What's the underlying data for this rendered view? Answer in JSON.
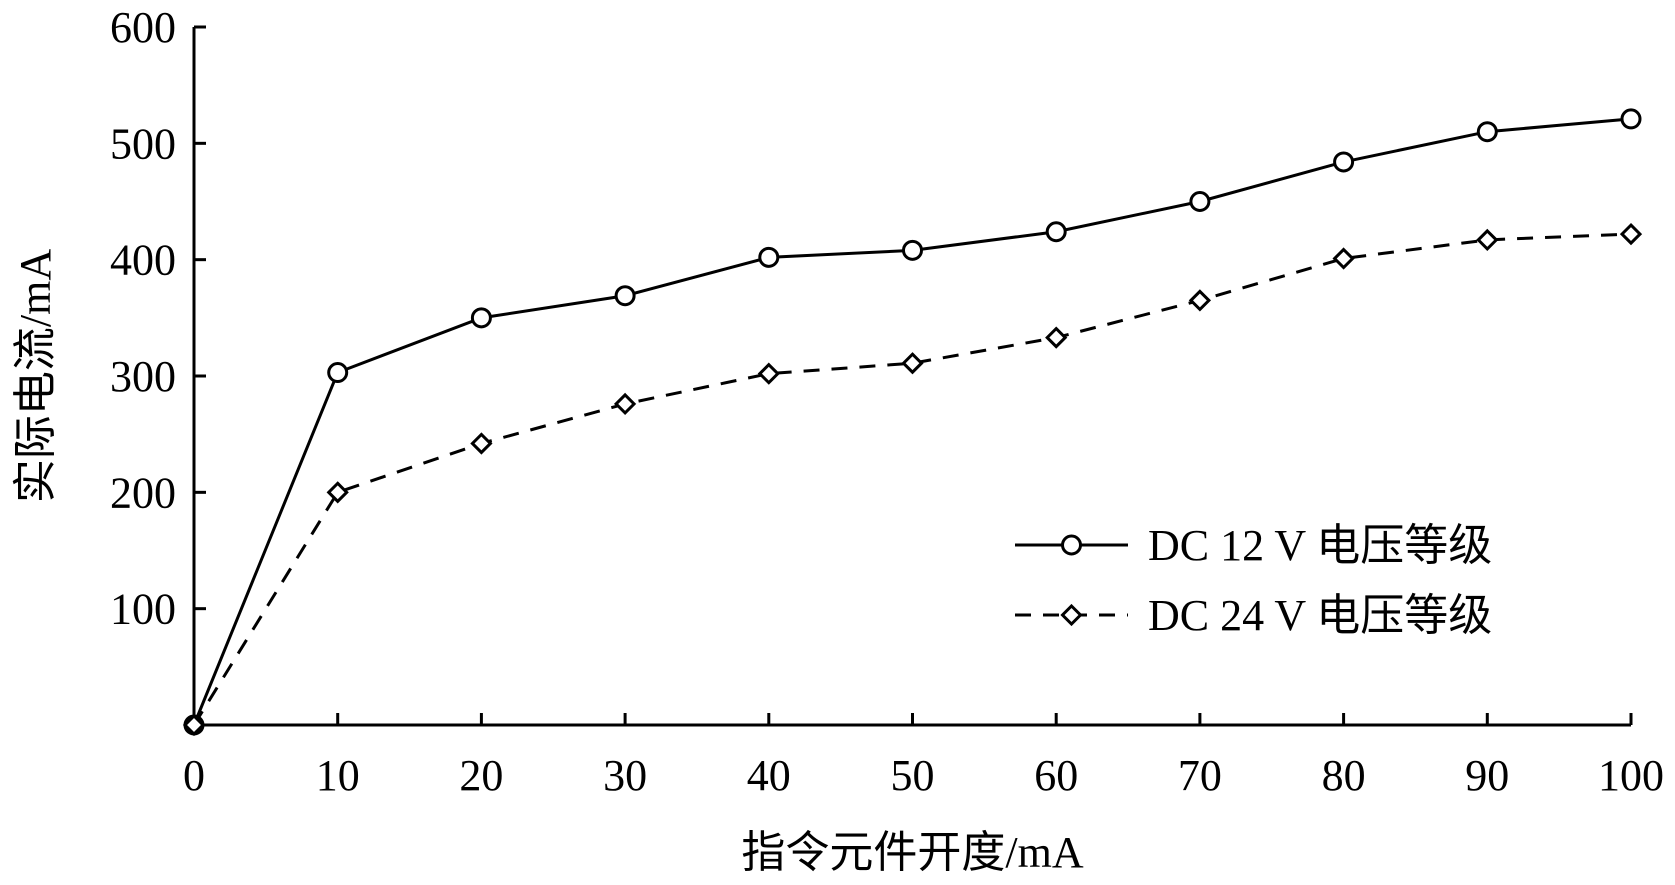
{
  "chart_data": {
    "type": "line",
    "title": "",
    "xlabel": "指令元件开度/mA",
    "ylabel": "实际电流/mA",
    "x": [
      0,
      10,
      20,
      30,
      40,
      50,
      60,
      70,
      80,
      90,
      100
    ],
    "xlim": [
      0,
      100
    ],
    "ylim": [
      0,
      600
    ],
    "xticks": [
      "0",
      "10",
      "20",
      "30",
      "40",
      "50",
      "60",
      "70",
      "80",
      "90",
      "100"
    ],
    "yticks": [
      "100",
      "200",
      "300",
      "400",
      "500",
      "600"
    ],
    "grid": false,
    "legend_position": "lower-right",
    "series": [
      {
        "name": "DC 12 V 电压等级",
        "values": [
          0,
          303,
          350,
          369,
          402,
          408,
          424,
          450,
          484,
          510,
          521
        ],
        "marker": "circle",
        "line_style": "solid",
        "color": "#000000"
      },
      {
        "name": "DC 24 V 电压等级",
        "values": [
          0,
          200,
          242,
          276,
          302,
          311,
          333,
          365,
          401,
          417,
          422
        ],
        "marker": "diamond",
        "line_style": "dashed",
        "color": "#000000"
      }
    ]
  }
}
